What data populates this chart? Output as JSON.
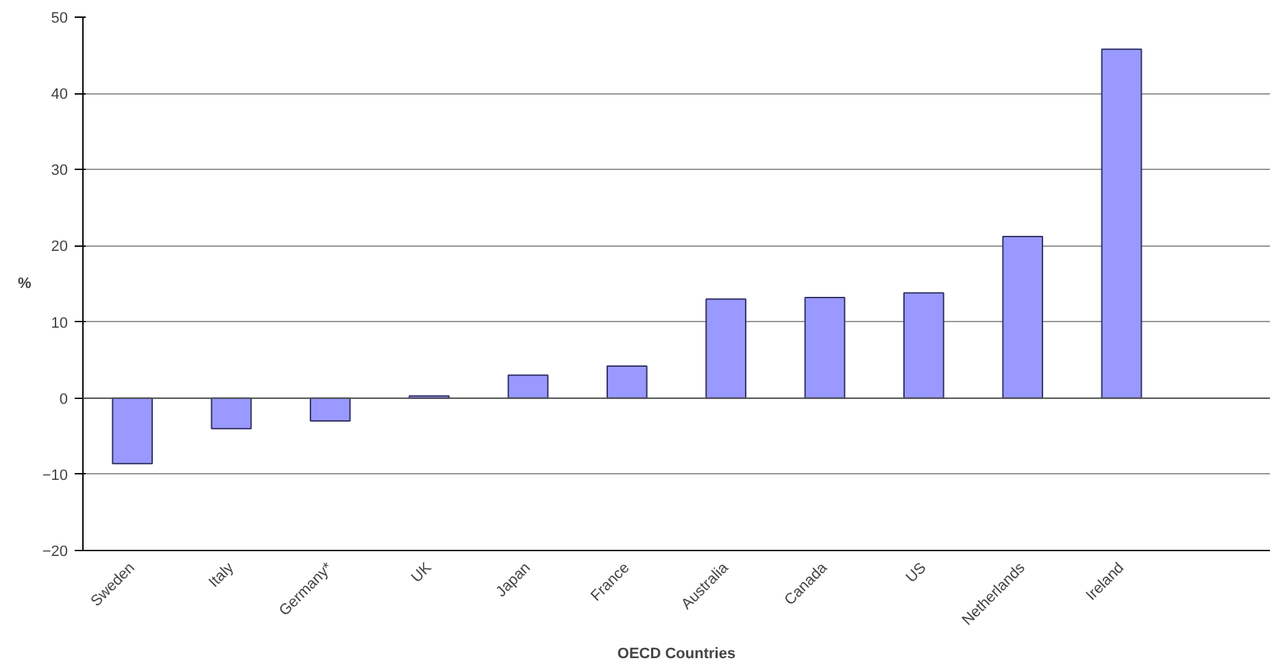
{
  "chart_data": {
    "type": "bar",
    "xlabel": "OECD Countries",
    "ylabel": "%",
    "categories": [
      "Sweden",
      "Italy",
      "Germany*",
      "UK",
      "Japan",
      "France",
      "Australia",
      "Canada",
      "US",
      "Netherlands",
      "Ireland",
      null
    ],
    "values": [
      -8.6,
      -4,
      -3,
      0.3,
      3,
      4.2,
      13,
      13.2,
      13.8,
      21.2,
      45.8,
      null
    ],
    "color": "#9999ff",
    "ylim": [
      -20,
      50
    ],
    "yticks": [
      -20,
      -10,
      0,
      10,
      20,
      30,
      40,
      50
    ],
    "grid": "y"
  }
}
